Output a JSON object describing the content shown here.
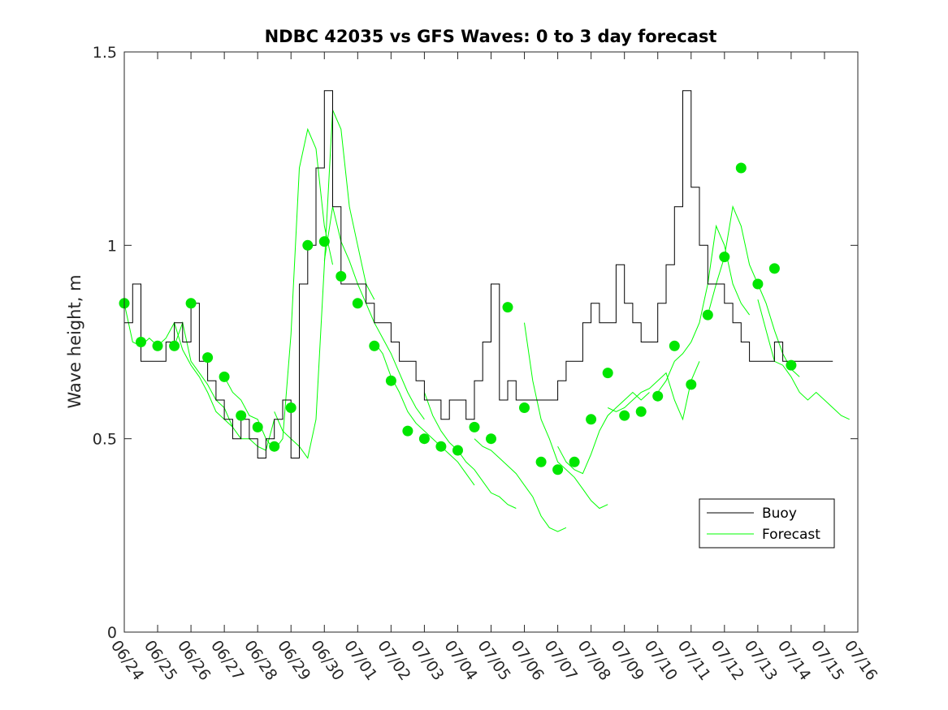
{
  "chart_data": {
    "type": "line",
    "title": "NDBC 42035 vs GFS Waves: 0 to 3 day forecast",
    "xlabel": "",
    "ylabel": "Wave height, m",
    "xlim": [
      "06/24",
      "07/16"
    ],
    "ylim": [
      0,
      1.5
    ],
    "xtick_labels": [
      "06/24",
      "06/25",
      "06/26",
      "06/27",
      "06/28",
      "06/29",
      "06/30",
      "07/01",
      "07/02",
      "07/03",
      "07/04",
      "07/05",
      "07/06",
      "07/07",
      "07/08",
      "07/09",
      "07/10",
      "07/11",
      "07/12",
      "07/13",
      "07/14",
      "07/15",
      "07/16"
    ],
    "ytick_values": [
      0,
      0.5,
      1,
      1.5
    ],
    "ytick_labels": [
      "0",
      "0.5",
      "1",
      "1.5"
    ],
    "grid": false,
    "legend": {
      "position": "bottom-right",
      "entries": [
        "Buoy",
        "Forecast"
      ]
    },
    "colors": {
      "buoy": "#000000",
      "forecast": "#00ff00",
      "markers": "#00e600"
    },
    "series": [
      {
        "name": "Buoy",
        "x_day_offset": [
          0,
          0.25,
          0.5,
          0.75,
          1,
          1.25,
          1.5,
          1.75,
          2,
          2.25,
          2.5,
          2.75,
          3,
          3.25,
          3.5,
          3.75,
          4,
          4.25,
          4.5,
          4.75,
          5,
          5.25,
          5.5,
          5.75,
          6,
          6.25,
          6.5,
          6.75,
          7,
          7.25,
          7.5,
          7.75,
          8,
          8.25,
          8.5,
          8.75,
          9,
          9.25,
          9.5,
          9.75,
          10,
          10.25,
          10.5,
          10.75,
          11,
          11.25,
          11.5,
          11.75,
          12,
          12.25,
          12.5,
          12.75,
          13,
          13.25,
          13.5,
          13.75,
          14,
          14.25,
          14.5,
          14.75,
          15,
          15.25,
          15.5,
          15.75,
          16,
          16.25,
          16.5,
          16.75,
          17,
          17.25,
          17.5,
          17.75,
          18,
          18.25,
          18.5,
          18.75,
          19,
          19.25,
          19.5,
          19.75,
          20,
          20.25,
          20.5,
          20.75,
          21,
          21.25
        ],
        "y": [
          0.8,
          0.9,
          0.7,
          0.7,
          0.7,
          0.75,
          0.8,
          0.75,
          0.85,
          0.7,
          0.65,
          0.6,
          0.55,
          0.5,
          0.55,
          0.5,
          0.45,
          0.5,
          0.55,
          0.6,
          0.45,
          0.9,
          1.0,
          1.2,
          1.4,
          1.1,
          0.9,
          0.9,
          0.9,
          0.85,
          0.8,
          0.8,
          0.75,
          0.7,
          0.7,
          0.65,
          0.6,
          0.6,
          0.55,
          0.6,
          0.6,
          0.55,
          0.65,
          0.75,
          0.9,
          0.6,
          0.65,
          0.6,
          0.6,
          0.6,
          0.6,
          0.6,
          0.65,
          0.7,
          0.7,
          0.8,
          0.85,
          0.8,
          0.8,
          0.95,
          0.85,
          0.8,
          0.75,
          0.75,
          0.85,
          0.95,
          1.1,
          1.4,
          1.15,
          1.0,
          0.9,
          0.9,
          0.85,
          0.8,
          0.75,
          0.7,
          0.7,
          0.7,
          0.75,
          0.7,
          0.7,
          0.7,
          0.7,
          0.7,
          0.7,
          0.7
        ]
      },
      {
        "name": "Forecast",
        "runs": [
          {
            "start": 0,
            "y": [
              0.85,
              0.75,
              0.74,
              0.76,
              0.74,
              0.76,
              0.8,
              0.73,
              0.69,
              0.66,
              0.62,
              0.57,
              0.55,
              0.53
            ]
          },
          {
            "start": 1.5,
            "y": [
              0.74,
              0.8,
              0.7,
              0.67,
              0.64,
              0.6,
              0.58,
              0.53,
              0.5,
              0.5,
              0.48,
              0.47,
              0.55
            ]
          },
          {
            "start": 3,
            "y": [
              0.66,
              0.62,
              0.6,
              0.56,
              0.55,
              0.5,
              0.47,
              0.5,
              0.77,
              1.2,
              1.3,
              1.25,
              1.05,
              0.95
            ]
          },
          {
            "start": 4.5,
            "y": [
              0.57,
              0.52,
              0.5,
              0.48,
              0.45,
              0.55,
              0.95,
              1.35,
              1.3,
              1.1,
              1.0,
              0.9,
              0.86
            ]
          },
          {
            "start": 6,
            "y": [
              0.96,
              1.1,
              1.01,
              0.96,
              0.9,
              0.85,
              0.8,
              0.76,
              0.72,
              0.67,
              0.62,
              0.58,
              0.55
            ]
          },
          {
            "start": 7.5,
            "y": [
              0.75,
              0.72,
              0.66,
              0.62,
              0.57,
              0.54,
              0.52,
              0.5,
              0.48,
              0.46,
              0.44,
              0.41,
              0.38
            ]
          },
          {
            "start": 9,
            "y": [
              0.62,
              0.56,
              0.52,
              0.49,
              0.47,
              0.44,
              0.42,
              0.39,
              0.36,
              0.35,
              0.33,
              0.32
            ]
          },
          {
            "start": 10.5,
            "y": [
              0.5,
              0.48,
              0.47,
              0.45,
              0.43,
              0.41,
              0.38,
              0.35,
              0.3,
              0.27,
              0.26,
              0.27
            ]
          },
          {
            "start": 12,
            "y": [
              0.8,
              0.65,
              0.55,
              0.5,
              0.44,
              0.42,
              0.4,
              0.37,
              0.34,
              0.32,
              0.33
            ]
          },
          {
            "start": 13,
            "y": [
              0.48,
              0.44,
              0.42,
              0.41,
              0.46,
              0.52,
              0.56,
              0.58,
              0.6,
              0.62,
              0.6,
              0.62
            ]
          },
          {
            "start": 14.5,
            "y": [
              0.58,
              0.57,
              0.58,
              0.6,
              0.62,
              0.63,
              0.65,
              0.67,
              0.6,
              0.55,
              0.65,
              0.7
            ]
          },
          {
            "start": 16,
            "y": [
              0.62,
              0.65,
              0.7,
              0.72,
              0.75,
              0.8,
              0.9,
              1.05,
              1.0,
              0.9,
              0.85,
              0.82
            ]
          },
          {
            "start": 17.5,
            "y": [
              0.82,
              0.9,
              0.97,
              1.1,
              1.05,
              0.95,
              0.9,
              0.85,
              0.78,
              0.72,
              0.68,
              0.66
            ]
          },
          {
            "start": 19,
            "y": [
              0.86,
              0.78,
              0.7,
              0.69,
              0.66,
              0.62,
              0.6,
              0.62,
              0.6,
              0.58,
              0.56,
              0.55
            ]
          }
        ]
      }
    ],
    "markers": {
      "x_day_offset": [
        0,
        0.5,
        1,
        1.5,
        2,
        2.5,
        3,
        3.5,
        4,
        4.5,
        5,
        5.5,
        6,
        6.5,
        7,
        7.5,
        8,
        8.5,
        9,
        9.5,
        10,
        10.5,
        11,
        11.5,
        12,
        12.5,
        13,
        13.5,
        14,
        14.5,
        15,
        15.5,
        16,
        16.5,
        17,
        17.5,
        18,
        18.5,
        19,
        19.5,
        20
      ],
      "y": [
        0.85,
        0.75,
        0.74,
        0.74,
        0.85,
        0.71,
        0.66,
        0.56,
        0.53,
        0.48,
        0.58,
        1.0,
        1.01,
        0.92,
        0.85,
        0.74,
        0.65,
        0.52,
        0.5,
        0.48,
        0.47,
        0.53,
        0.5,
        0.84,
        0.58,
        0.44,
        0.42,
        0.44,
        0.55,
        0.67,
        0.56,
        0.57,
        0.61,
        0.74,
        0.64,
        0.82,
        0.97,
        1.2,
        0.9,
        0.94,
        0.69
      ]
    }
  }
}
